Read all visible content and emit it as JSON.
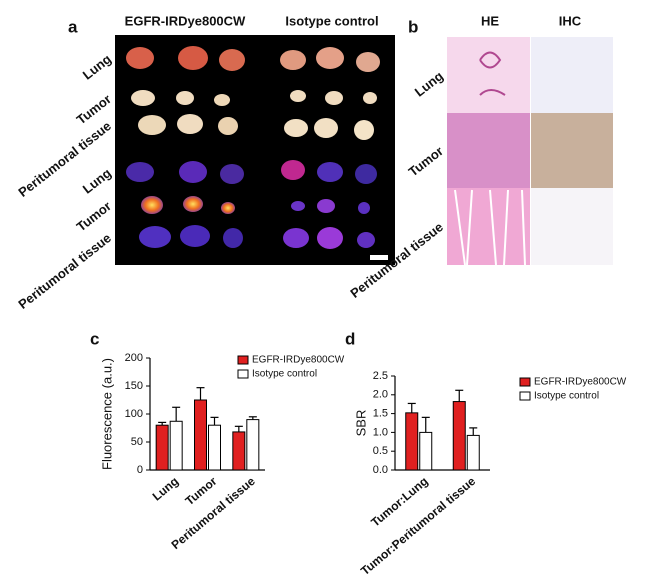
{
  "panel_a": {
    "label": "a",
    "columns": [
      "EGFR-IRDye800CW",
      "Isotype control"
    ],
    "rows": [
      "Lung",
      "Tumor",
      "Peritumoral tissue",
      "Lung",
      "Tumor",
      "Peritumoral tissue"
    ]
  },
  "panel_b": {
    "label": "b",
    "columns": [
      "HE",
      "IHC"
    ],
    "rows": [
      "Lung",
      "Tumor",
      "Peritumoral tissue"
    ]
  },
  "chart_data": [
    {
      "type": "bar",
      "panel_label": "c",
      "y_label": "Fluorescence (a.u.)",
      "categories": [
        "Lung",
        "Tumor",
        "Peritumoral tissue"
      ],
      "series": [
        {
          "name": "EGFR-IRDye800CW",
          "color": "#e02020",
          "values": [
            80,
            125,
            68
          ],
          "errors": [
            5,
            22,
            10
          ]
        },
        {
          "name": "Isotype control",
          "color": "#ffffff",
          "values": [
            87,
            80,
            90
          ],
          "errors": [
            25,
            14,
            5
          ]
        }
      ],
      "ylim": [
        0,
        200
      ],
      "yticks": [
        0,
        50,
        100,
        150,
        200
      ]
    },
    {
      "type": "bar",
      "panel_label": "d",
      "y_label": "SBR",
      "categories": [
        "Tumor:Lung",
        "Tumor:Peritumoral tissue"
      ],
      "series": [
        {
          "name": "EGFR-IRDye800CW",
          "color": "#e02020",
          "values": [
            1.52,
            1.82
          ],
          "errors": [
            0.25,
            0.3
          ]
        },
        {
          "name": "Isotype control",
          "color": "#ffffff",
          "values": [
            1.0,
            0.92
          ],
          "errors": [
            0.4,
            0.2
          ]
        }
      ],
      "ylim": [
        0,
        2.5
      ],
      "yticks": [
        {
          "value": 0,
          "label": "0.0"
        },
        0.5,
        {
          "value": 1,
          "label": "1.0"
        },
        1.5,
        {
          "value": 2,
          "label": "2.0"
        },
        2.5
      ]
    }
  ]
}
